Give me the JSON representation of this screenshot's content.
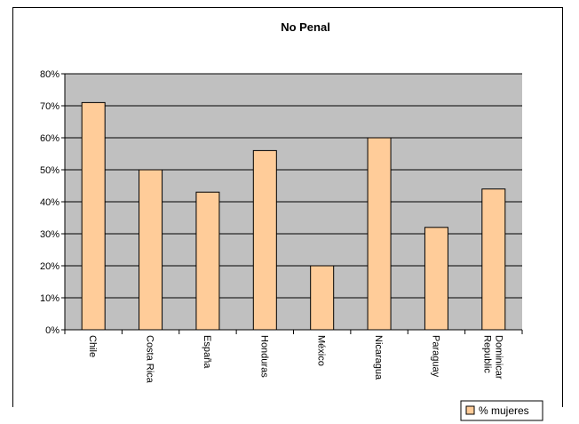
{
  "chart_data": {
    "type": "bar",
    "title": "No Penal",
    "categories": [
      "Chile",
      "Costa Rica",
      "España",
      "Honduras",
      "México",
      "Nicaragua",
      "Paraguay",
      "Republic Dominicar"
    ],
    "series": [
      {
        "name": "% mujeres",
        "values": [
          71,
          50,
          43,
          56,
          20,
          60,
          32,
          44
        ]
      }
    ],
    "yticks": [
      "0%",
      "10%",
      "20%",
      "30%",
      "40%",
      "50%",
      "60%",
      "70%",
      "80%"
    ],
    "ylim": [
      0,
      80
    ],
    "grid": true,
    "legend": "bottom-right",
    "colors": {
      "bar": "#FFCC99",
      "bar_stroke": "#000000",
      "plot_bg": "#C0C0C0",
      "grid": "#000000"
    }
  }
}
